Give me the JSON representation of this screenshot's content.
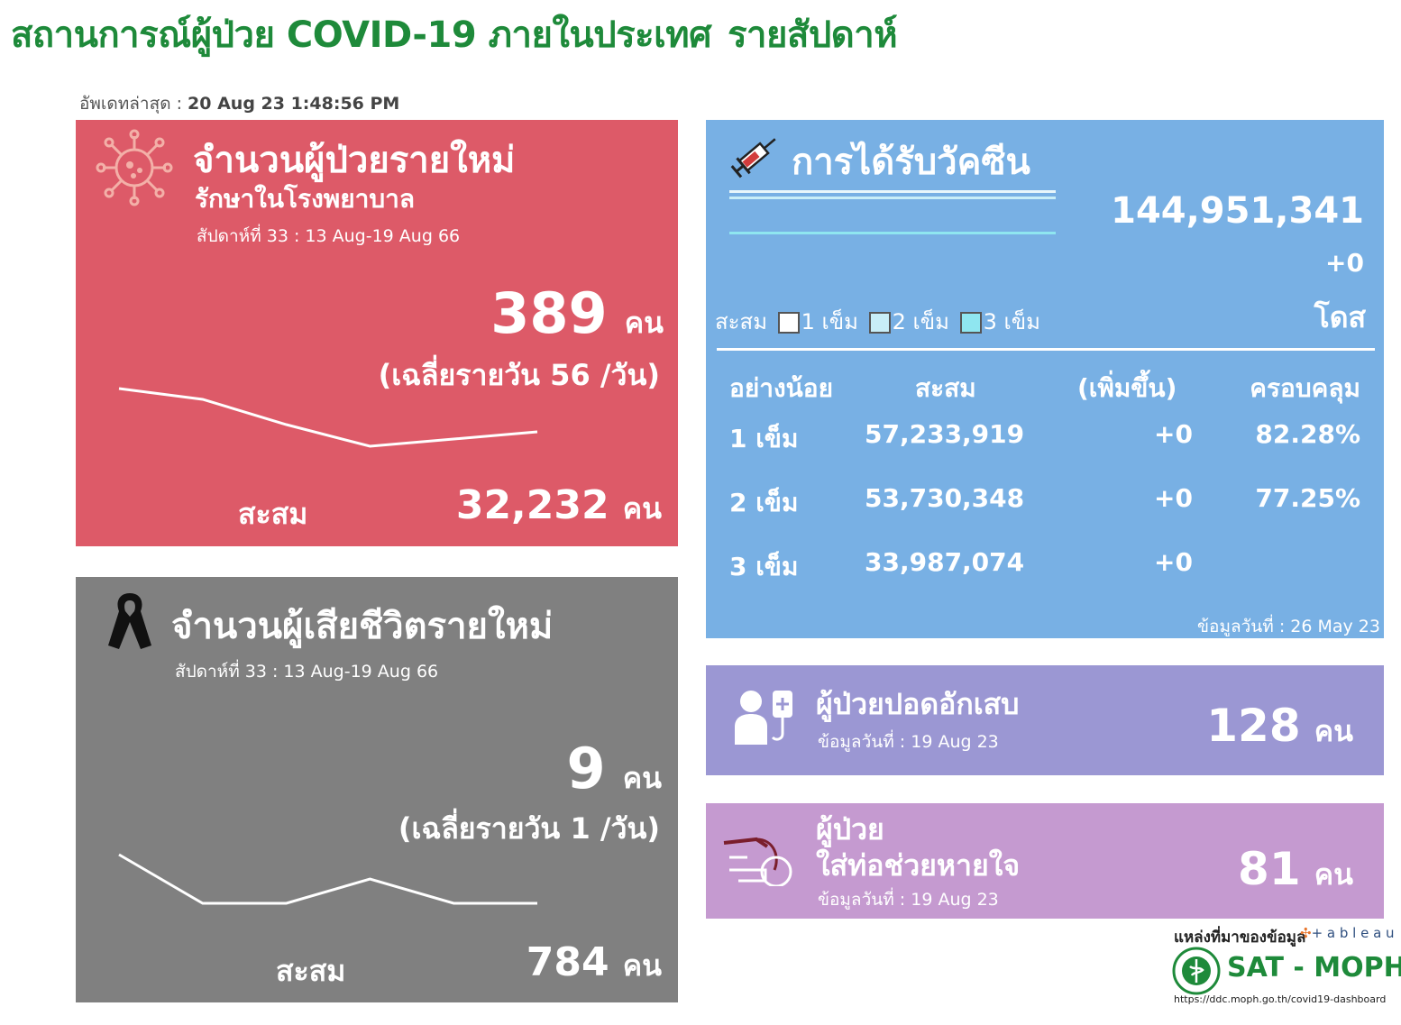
{
  "header": {
    "title": "สถานการณ์ผู้ป่วย COVID-19 ภายในประเทศ",
    "title_weekly": "รายสัปดาห์",
    "updated_label": "อัพเดทล่าสุด :",
    "updated_value": "20 Aug 23 1:48:56 PM"
  },
  "new_cases": {
    "title": "จำนวนผู้ป่วยรายใหม่",
    "subtitle": "รักษาในโรงพยาบาล",
    "week": "สัปดาห์ที่ 33 : 13 Aug-19 Aug 66",
    "value": "389",
    "unit": "คน",
    "avg": "(เฉลี่ยรายวัน 56 /วัน)",
    "cum_label": "สะสม",
    "cum_value": "32,232",
    "cum_unit": "คน",
    "color": "#dd5a68",
    "icon": "virus-icon"
  },
  "deaths": {
    "title": "จำนวนผู้เสียชีวิตรายใหม่",
    "week": "สัปดาห์ที่ 33 : 13 Aug-19 Aug 66",
    "value": "9",
    "unit": "คน",
    "avg": "(เฉลี่ยรายวัน 1 /วัน)",
    "cum_label": "สะสม",
    "cum_value": "784",
    "cum_unit": "คน",
    "color": "#808080",
    "icon": "mourning-ribbon-icon"
  },
  "vaccine": {
    "title": "การได้รับวัคซีน",
    "total": "144,951,341",
    "total_change": "+0",
    "dose_unit": "โดส",
    "legend_label": "สะสม",
    "legend": [
      {
        "label": "1 เข็ม",
        "color": "#ffffff"
      },
      {
        "label": "2 เข็ม",
        "color": "#c8eef8"
      },
      {
        "label": "3 เข็ม",
        "color": "#8fe6f0"
      }
    ],
    "columns": [
      "อย่างน้อย",
      "สะสม",
      "(เพิ่มขึ้น)",
      "ครอบคลุม"
    ],
    "rows": [
      {
        "dose": "1 เข็ม",
        "cum": "57,233,919",
        "inc": "+0",
        "cov": "82.28%"
      },
      {
        "dose": "2 เข็ม",
        "cum": "53,730,348",
        "inc": "+0",
        "cov": "77.25%"
      },
      {
        "dose": "3 เข็ม",
        "cum": "33,987,074",
        "inc": "+0",
        "cov": ""
      }
    ],
    "data_date": "ข้อมูลวันที่ : 26 May 23",
    "color": "#78b0e4",
    "icon": "syringe-icon"
  },
  "pneumonia": {
    "title": "ผู้ป่วยปอดอักเสบ",
    "data_date": "ข้อมูลวันที่ : 19 Aug 23",
    "value": "128",
    "unit": "คน",
    "color": "#9b97d3",
    "icon": "patient-iv-icon"
  },
  "ventilator": {
    "title_1": "ผู้ป่วย",
    "title_2": "ใส่ท่อช่วยหายใจ",
    "data_date": "ข้อมูลวันที่ : 19 Aug 23",
    "value": "81",
    "unit": "คน",
    "color": "#c59ad0",
    "icon": "intubation-icon"
  },
  "footer": {
    "source_label": "แหล่งที่มาของข้อมูล",
    "tableau": "+ a b l e a u",
    "org": "SAT - MOPH",
    "url": "https://ddc.moph.go.th/covid19-dashboard"
  },
  "chart_data": [
    {
      "type": "line",
      "name": "new_cases_trend",
      "values": [
        62,
        59,
        52,
        46,
        48,
        50
      ]
    },
    {
      "type": "line",
      "name": "deaths_trend",
      "values": [
        2,
        0,
        0,
        1,
        0,
        0
      ]
    }
  ]
}
